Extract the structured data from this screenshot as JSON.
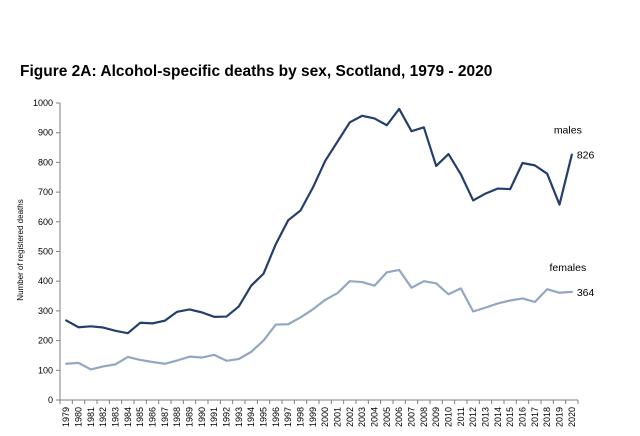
{
  "chart_data": {
    "type": "line",
    "title": "Figure 2A: Alcohol-specific deaths by sex,  Scotland, 1979 - 2020",
    "xlabel": "",
    "ylabel": "Number of registered deaths",
    "ylim": [
      0,
      1000
    ],
    "yticks": [
      0,
      100,
      200,
      300,
      400,
      500,
      600,
      700,
      800,
      900,
      1000
    ],
    "grid": false,
    "legend": "none",
    "categories": [
      "1979",
      "1980",
      "1981",
      "1982",
      "1983",
      "1984",
      "1985",
      "1986",
      "1987",
      "1988",
      "1989",
      "1990",
      "1991",
      "1992",
      "1993",
      "1994",
      "1995",
      "1996",
      "1997",
      "1998",
      "1999",
      "2000",
      "2001",
      "2002",
      "2003",
      "2004",
      "2005",
      "2006",
      "2007",
      "2008",
      "2009",
      "2010",
      "2011",
      "2012",
      "2013",
      "2014",
      "2015",
      "2016",
      "2017",
      "2018",
      "2019",
      "2020"
    ],
    "series": [
      {
        "name": "males",
        "color": "#243f6b",
        "end_label": "826",
        "values": [
          268,
          245,
          248,
          244,
          233,
          225,
          260,
          258,
          267,
          297,
          305,
          295,
          280,
          281,
          315,
          385,
          425,
          525,
          605,
          638,
          715,
          805,
          870,
          935,
          957,
          948,
          925,
          980,
          905,
          918,
          788,
          828,
          760,
          672,
          695,
          712,
          710,
          798,
          790,
          762,
          658,
          826
        ]
      },
      {
        "name": "females",
        "color": "#94a7c2",
        "end_label": "364",
        "values": [
          122,
          125,
          103,
          113,
          120,
          145,
          135,
          128,
          122,
          133,
          146,
          143,
          152,
          132,
          138,
          162,
          200,
          254,
          255,
          278,
          305,
          337,
          360,
          400,
          397,
          385,
          430,
          438,
          378,
          400,
          393,
          356,
          376,
          298,
          311,
          325,
          335,
          342,
          330,
          373,
          361,
          364
        ]
      }
    ]
  }
}
